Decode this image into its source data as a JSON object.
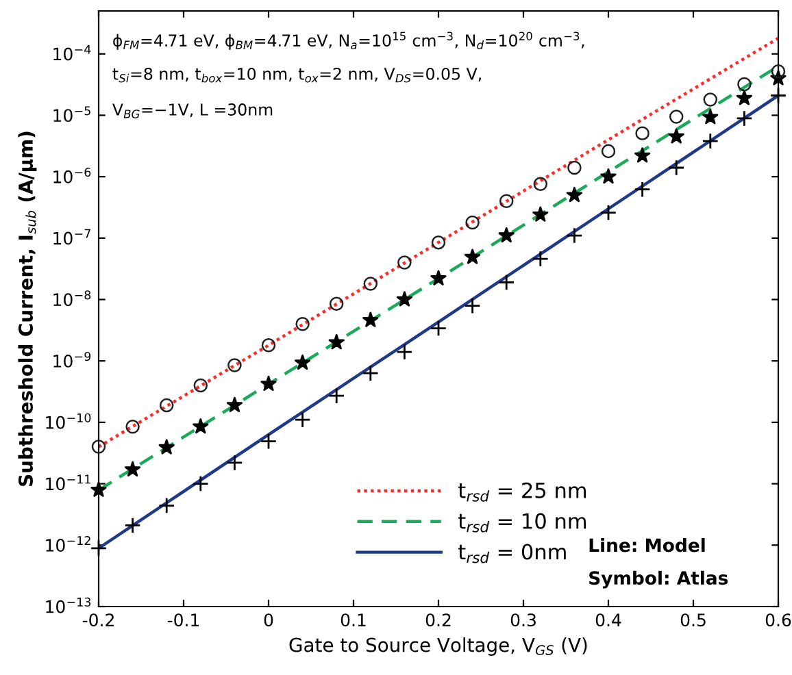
{
  "chart_data": {
    "type": "line",
    "xlabel": "Gate to Source Voltage, V$_{GS}$ (V)",
    "ylabel": "Subthreshold Current, I$_{sub}$ (A/μm)",
    "log": "y",
    "xlim": [
      -0.2,
      0.6
    ],
    "xticks": [
      -0.2,
      -0.1,
      0,
      0.1,
      0.2,
      0.3,
      0.4,
      0.5,
      0.6
    ],
    "ylim": [
      1e-13,
      0.0005
    ],
    "yticks": [
      {
        "value": 1e-13,
        "label": "10$^{−13}$"
      },
      {
        "value": 1e-12,
        "label": "10$^{−12}$"
      },
      {
        "value": 1e-11,
        "label": "10$^{−11}$"
      },
      {
        "value": 1e-10,
        "label": "10$^{−10}$"
      },
      {
        "value": 1e-09,
        "label": "10$^{−9}$"
      },
      {
        "value": 1e-08,
        "label": "10$^{−8}$"
      },
      {
        "value": 1e-07,
        "label": "10$^{−7}$"
      },
      {
        "value": 1e-06,
        "label": "10$^{−6}$"
      },
      {
        "value": 1e-05,
        "label": "10$^{−5}$"
      },
      {
        "value": 0.0001,
        "label": "10$^{−4}$"
      }
    ],
    "grid": false,
    "legend": "bottom",
    "series": [
      {
        "name": "t$_{rsd}$ = 25 nm",
        "line_style": "dotted",
        "color": "#ff2a2a",
        "x": [
          -0.2,
          0,
          0.2,
          0.4,
          0.6
        ],
        "values": [
          4e-11,
          1.8e-09,
          8.5e-08,
          4e-06,
          0.00018
        ]
      },
      {
        "name": "t$_{rsd}$ = 10 nm",
        "line_style": "dashed",
        "color": "#1aaa5a",
        "x": [
          -0.2,
          0,
          0.2,
          0.4,
          0.6
        ],
        "values": [
          7.9e-12,
          4.2e-10,
          2.2e-08,
          1.2e-06,
          6.3e-05
        ]
      },
      {
        "name": "t$_{rsd}$ = 0nm",
        "line_style": "solid",
        "color": "#1f3a8a",
        "x": [
          -0.2,
          0,
          0.2,
          0.4,
          0.6
        ],
        "values": [
          8.9e-13,
          6.3e-11,
          4.3e-09,
          3e-07,
          2.1e-05
        ]
      },
      {
        "type": "scatter",
        "marker": "circle",
        "color": "#222222",
        "x": [
          -0.2,
          -0.16,
          -0.12,
          -0.08,
          -0.04,
          0,
          0.04,
          0.08,
          0.12,
          0.16,
          0.2,
          0.24,
          0.28,
          0.32,
          0.36,
          0.4,
          0.44,
          0.48,
          0.52,
          0.56,
          0.6
        ],
        "values": [
          4e-11,
          8.5e-11,
          1.9e-10,
          4e-10,
          8.5e-10,
          1.8e-09,
          4e-09,
          8.5e-09,
          1.8e-08,
          4e-08,
          8.5e-08,
          1.8e-07,
          4e-07,
          7.6e-07,
          1.4e-06,
          2.6e-06,
          5.1e-06,
          9.5e-06,
          1.8e-05,
          3.2e-05,
          5.2e-05
        ]
      },
      {
        "type": "scatter",
        "marker": "star",
        "color": "#000000",
        "x": [
          -0.2,
          -0.16,
          -0.12,
          -0.08,
          -0.04,
          0,
          0.04,
          0.08,
          0.12,
          0.16,
          0.2,
          0.24,
          0.28,
          0.32,
          0.36,
          0.4,
          0.44,
          0.48,
          0.52,
          0.56,
          0.6
        ],
        "values": [
          7.9e-12,
          1.7e-11,
          3.9e-11,
          8.5e-11,
          1.9e-10,
          4.2e-10,
          9.3e-10,
          2e-09,
          4.6e-09,
          1e-08,
          2.2e-08,
          4.9e-08,
          1.1e-07,
          2.4e-07,
          5e-07,
          1e-06,
          2.2e-06,
          4.5e-06,
          9.3e-06,
          1.9e-05,
          4e-05
        ]
      },
      {
        "type": "scatter",
        "marker": "cross",
        "color": "#000000",
        "x": [
          -0.2,
          -0.16,
          -0.12,
          -0.08,
          -0.04,
          0,
          0.04,
          0.08,
          0.12,
          0.16,
          0.2,
          0.24,
          0.28,
          0.32,
          0.36,
          0.4,
          0.44,
          0.48,
          0.52,
          0.56,
          0.6
        ],
        "values": [
          8.9e-13,
          2.1e-12,
          4.4e-12,
          1e-11,
          2.2e-11,
          4.9e-11,
          1.1e-10,
          2.7e-10,
          6.3e-10,
          1.4e-09,
          3.4e-09,
          7.9e-09,
          1.9e-08,
          4.6e-08,
          1.1e-07,
          2.6e-07,
          6.2e-07,
          1.4e-06,
          3.8e-06,
          8.9e-06,
          2.1e-05
        ]
      }
    ],
    "annotations": [
      "ϕ$_{FM}$=4.71 eV, ϕ$_{BM}$=4.71 eV, N$_{a}$=10$^{15}$ cm$^{−3}$, N$_{d}$=10$^{20}$ cm$^{−3}$,",
      "t$_{Si}$=8 nm, t$_{box}$=10 nm, t$_{ox}$=2 nm, V$_{DS}$=0.05 V,",
      "V$_{BG}$=−1V, L =30nm",
      "Line: Model",
      "Symbol: Atlas"
    ]
  }
}
